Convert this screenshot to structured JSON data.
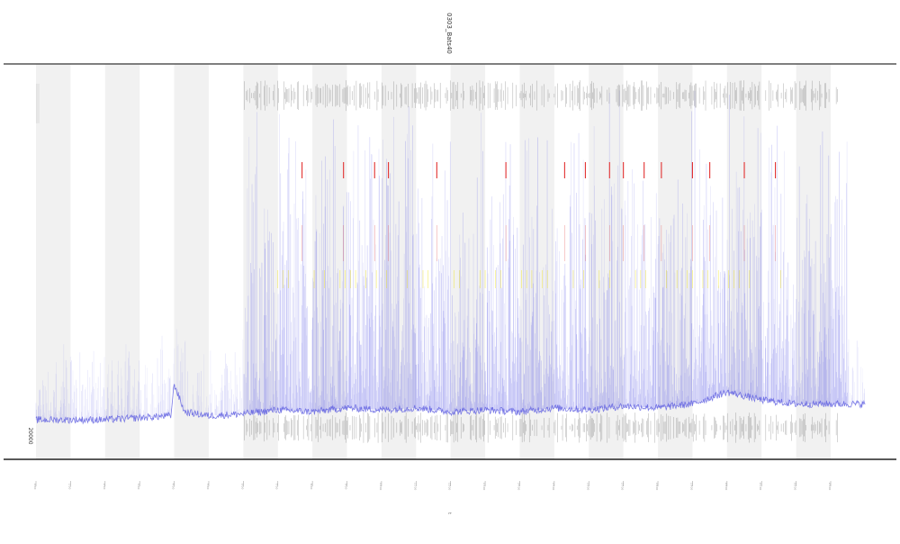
{
  "chart_data": {
    "type": "line",
    "title": "0303_Bats40",
    "xlabel": "t",
    "ylabel": "",
    "ylabel_min_tick": "20000",
    "x_ticks": [
      "0:00",
      "1:00",
      "2:00",
      "3:00",
      "4:00",
      "5:00",
      "6:00",
      "7:00",
      "8:00",
      "9:00",
      "10:00",
      "11:00",
      "12:00",
      "13:00",
      "14:00",
      "15:00",
      "16:00",
      "17:00",
      "18:00",
      "19:00",
      "20:00",
      "21:00",
      "22:00",
      "23:00"
    ],
    "xlim": [
      0,
      24
    ],
    "ylim": [
      0,
      100
    ],
    "shaded_bands": [
      [
        0,
        1
      ],
      [
        2,
        3
      ],
      [
        4,
        5
      ],
      [
        6,
        7
      ],
      [
        8,
        9
      ],
      [
        10,
        11
      ],
      [
        12,
        13
      ],
      [
        14,
        15
      ],
      [
        16,
        17
      ],
      [
        18,
        19
      ],
      [
        20,
        21
      ],
      [
        22,
        23
      ]
    ],
    "series": [
      {
        "color": "#6a6ae8",
        "baseline": [
          [
            0,
            10
          ],
          [
            1,
            10
          ],
          [
            2,
            10
          ],
          [
            3,
            10.5
          ],
          [
            3.9,
            11
          ],
          [
            4.0,
            19
          ],
          [
            4.3,
            12
          ],
          [
            5.0,
            11
          ],
          [
            6.0,
            11.5
          ],
          [
            7.0,
            12.5
          ],
          [
            8.0,
            12
          ],
          [
            9.0,
            13
          ],
          [
            10.0,
            12.5
          ],
          [
            11.0,
            13
          ],
          [
            12.0,
            12
          ],
          [
            13.0,
            12.5
          ],
          [
            14.0,
            12
          ],
          [
            15.0,
            13
          ],
          [
            16.0,
            12.5
          ],
          [
            17.0,
            13.5
          ],
          [
            18.0,
            13
          ],
          [
            19.0,
            14
          ],
          [
            20.0,
            17
          ],
          [
            21.0,
            15
          ],
          [
            22.0,
            14
          ],
          [
            23.0,
            14
          ],
          [
            23.5,
            14
          ],
          [
            24.0,
            14
          ]
        ]
      }
    ],
    "activity_start": 6.0,
    "activity_end": 23.5,
    "top_marks": {
      "y": 92,
      "color": "#555555"
    },
    "bottom_marks": {
      "y": 8,
      "color": "#555555"
    },
    "red_marks": {
      "color": "#e23030",
      "x": [
        7.7,
        8.9,
        9.8,
        10.2,
        11.6,
        13.6,
        15.3,
        15.9,
        16.6,
        17.0,
        17.6,
        18.1,
        19.0,
        19.5,
        20.5,
        21.4
      ]
    },
    "yellow_marks": {
      "color": "#f2e200"
    },
    "grid": false,
    "legend": "none"
  }
}
